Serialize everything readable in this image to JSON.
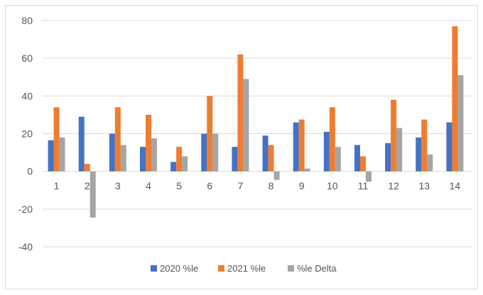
{
  "chart_data": {
    "type": "bar",
    "categories": [
      "1",
      "2",
      "3",
      "4",
      "5",
      "6",
      "7",
      "8",
      "9",
      "10",
      "11",
      "12",
      "13",
      "14"
    ],
    "series": [
      {
        "name": "2020 %le",
        "color": "#4472C4",
        "values": [
          16.5,
          29,
          20,
          13,
          5,
          20,
          13,
          19,
          26,
          21,
          14,
          15,
          18,
          26
        ]
      },
      {
        "name": "2021 %le",
        "color": "#ED7D31",
        "values": [
          34,
          4,
          34,
          30,
          13,
          40,
          62,
          14,
          27.5,
          34,
          8,
          38,
          27.5,
          77
        ]
      },
      {
        "name": "%le Delta",
        "color": "#A5A5A5",
        "values": [
          18,
          -24.5,
          14,
          17.5,
          8,
          20,
          49,
          -4.5,
          1.5,
          13,
          -5.5,
          23,
          9,
          51
        ]
      }
    ],
    "yticks": [
      80,
      60,
      40,
      20,
      0,
      -20,
      -40
    ],
    "ylim": [
      -40,
      80
    ],
    "grid": true,
    "legend_position": "bottom"
  }
}
